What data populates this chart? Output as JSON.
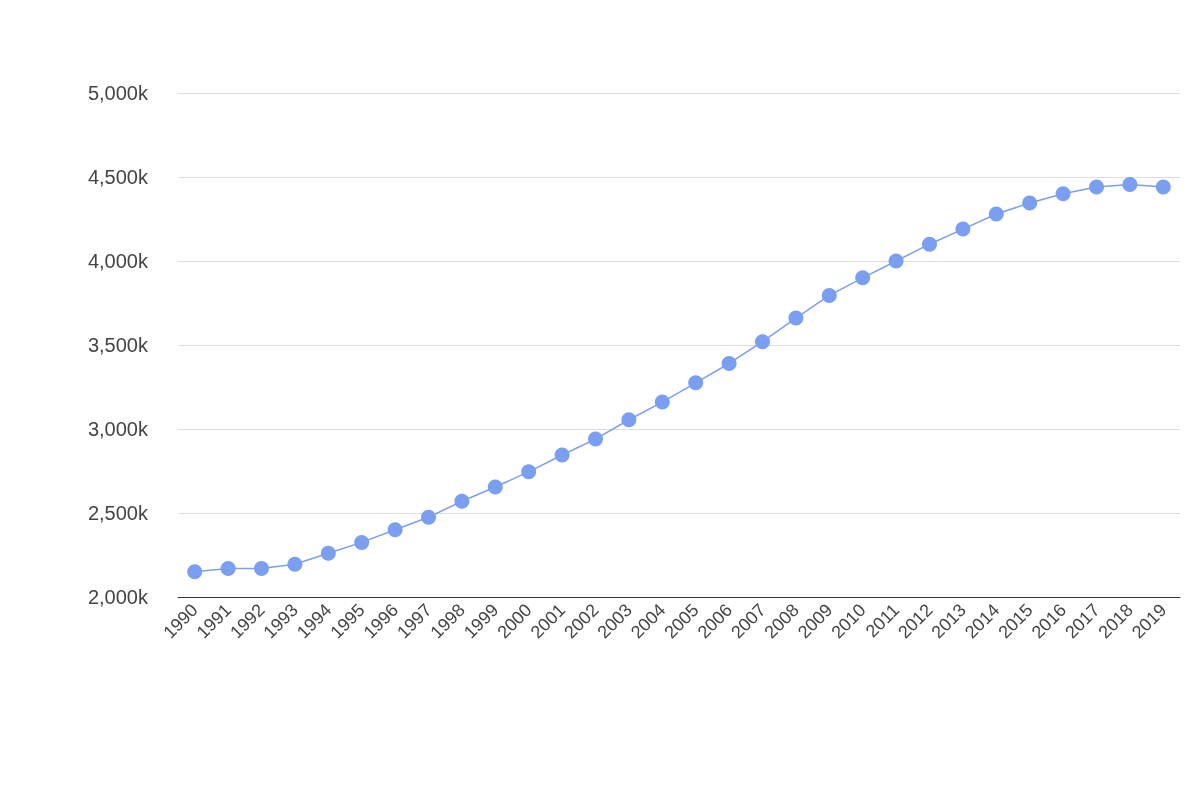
{
  "chart_data": {
    "type": "line",
    "categories": [
      "1990",
      "1991",
      "1992",
      "1993",
      "1994",
      "1995",
      "1996",
      "1997",
      "1998",
      "1999",
      "2000",
      "2001",
      "2002",
      "2003",
      "2004",
      "2005",
      "2006",
      "2007",
      "2008",
      "2009",
      "2010",
      "2011",
      "2012",
      "2013",
      "2014",
      "2015",
      "2016",
      "2017",
      "2018",
      "2019"
    ],
    "series": [
      {
        "color": "#7b9ff0",
        "values": [
          2150,
          2170,
          2170,
          2195,
          2260,
          2325,
          2400,
          2475,
          2570,
          2655,
          2745,
          2845,
          2940,
          3055,
          3160,
          3275,
          3390,
          3520,
          3660,
          3795,
          3900,
          4000,
          4100,
          4190,
          4280,
          4345,
          4400,
          4440,
          4455,
          4440
        ]
      }
    ],
    "ylim": [
      2000,
      5000
    ],
    "yticks": [
      {
        "value": 2000,
        "label": "2,000k"
      },
      {
        "value": 2500,
        "label": "2,500k"
      },
      {
        "value": 3000,
        "label": "3,000k"
      },
      {
        "value": 3500,
        "label": "3,500k"
      },
      {
        "value": 4000,
        "label": "4,000k"
      },
      {
        "value": 4500,
        "label": "4,500k"
      },
      {
        "value": 5000,
        "label": "5,000k"
      }
    ],
    "grid": "y",
    "marker": "circle",
    "line_style": "solid"
  }
}
